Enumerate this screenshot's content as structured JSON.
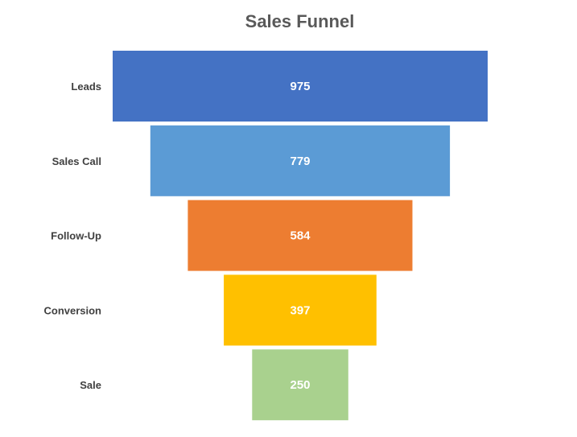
{
  "chart_data": {
    "type": "bar",
    "subtype": "funnel",
    "title": "Sales Funnel",
    "xlabel": "",
    "ylabel": "",
    "categories": [
      "Leads",
      "Sales Call",
      "Follow-Up",
      "Conversion",
      "Sale"
    ],
    "values": [
      975,
      779,
      584,
      397,
      250
    ],
    "colors": [
      "#4472C4",
      "#5B9BD5",
      "#ED7D31",
      "#FFC000",
      "#A9D18E"
    ],
    "legend": "none",
    "grid": false,
    "data_labels": true
  }
}
